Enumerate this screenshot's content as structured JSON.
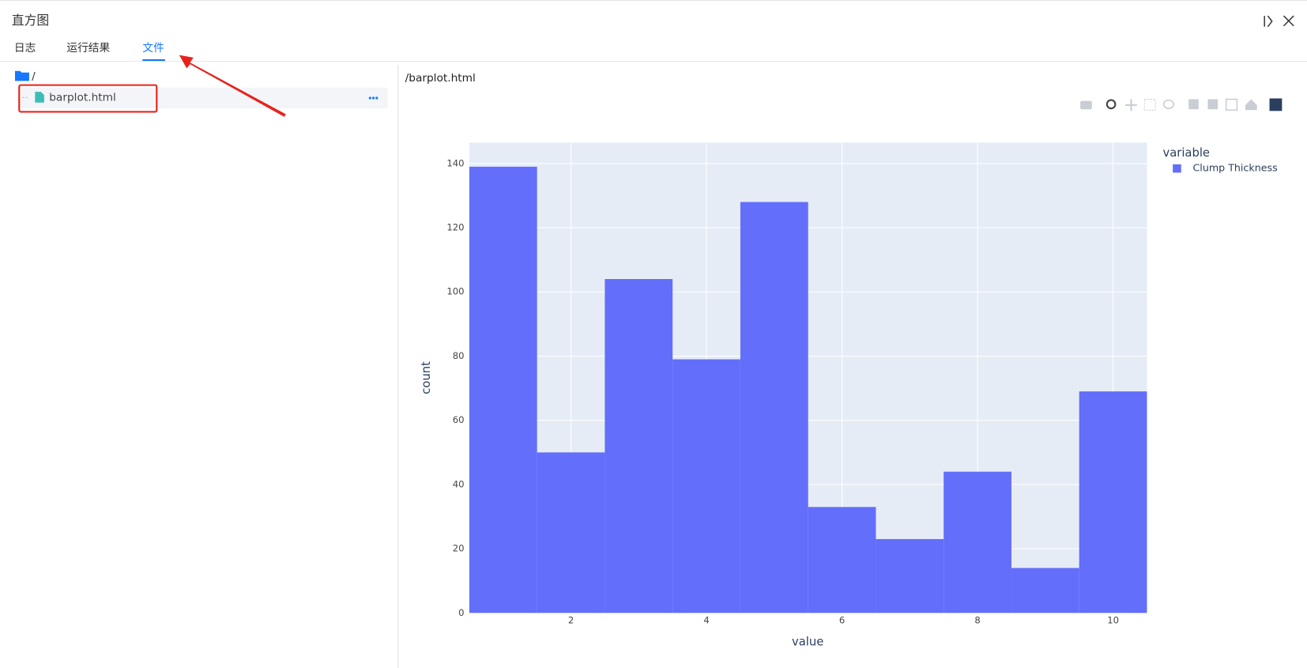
{
  "header": {
    "title": "直方图"
  },
  "tabs": [
    "日志",
    "运行结果",
    "文件"
  ],
  "file_tree": {
    "root": "/",
    "files": [
      "barplot.html"
    ]
  },
  "preview": {
    "path": "/barplot.html"
  },
  "chart_data": {
    "type": "histogram",
    "bins": [
      0.5,
      1.5,
      2.5,
      3.5,
      4.5,
      5.5,
      6.5,
      7.5,
      8.5,
      9.5,
      10.5
    ],
    "series": [
      {
        "name": "Clump Thickness",
        "color": "#636efa",
        "values": [
          139,
          50,
          104,
          79,
          128,
          33,
          23,
          44,
          14,
          69
        ]
      }
    ],
    "x_label": "value",
    "y_label": "count",
    "xlim": [
      0.5,
      10.5
    ],
    "xticks": [
      2,
      4,
      6,
      8,
      10
    ],
    "ylim": [
      0,
      146.5
    ],
    "yticks": [
      0,
      20,
      40,
      60,
      80,
      100,
      120,
      140
    ],
    "grid": true,
    "legend": {
      "title": "variable",
      "position": "right"
    }
  }
}
